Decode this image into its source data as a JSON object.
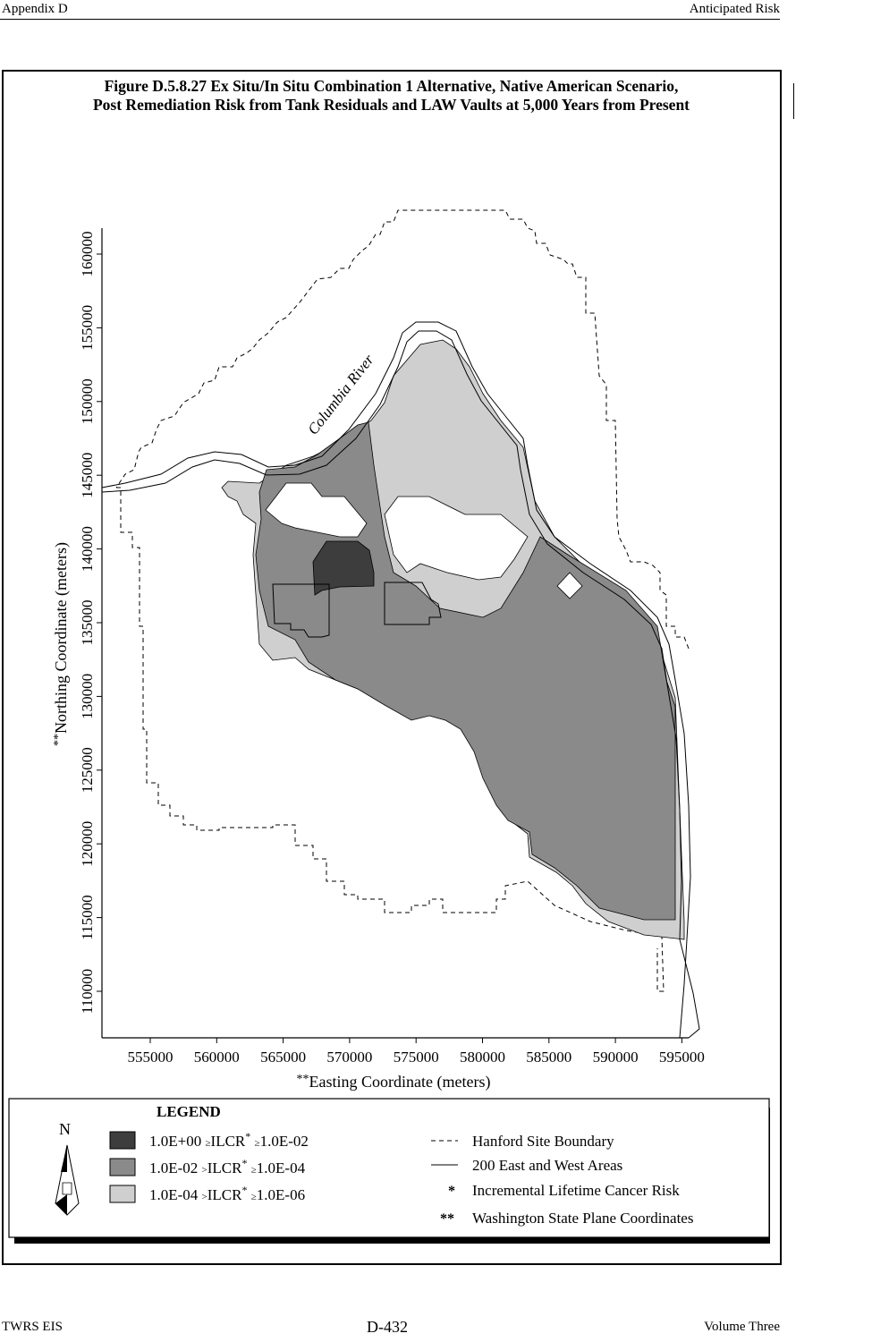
{
  "header": {
    "left": "Appendix D",
    "right": "Anticipated Risk"
  },
  "figure": {
    "title_line1": "Figure D.5.8.27  Ex Situ/In Situ Combination 1 Alternative, Native American Scenario,",
    "title_line2": "Post Remediation Risk from Tank Residuals and LAW Vaults at 5,000 Years from Present"
  },
  "map": {
    "river_label": "Columbia River",
    "x_axis_prefix": "**",
    "x_axis_label": "Easting Coordinate (meters)",
    "y_axis_prefix": "**",
    "y_axis_label": "Northing Coordinate (meters)",
    "x_ticks": [
      "555000",
      "560000",
      "565000",
      "570000",
      "575000",
      "580000",
      "585000",
      "590000",
      "595000"
    ],
    "y_ticks": [
      "110000",
      "115000",
      "120000",
      "125000",
      "130000",
      "135000",
      "140000",
      "145000",
      "150000",
      "155000",
      "160000"
    ],
    "colors": {
      "high": "#3d3d3d",
      "mid": "#8a8a8a",
      "low": "#cfcfcf"
    }
  },
  "legend": {
    "title": "LEGEND",
    "north_symbol": "N",
    "items": [
      {
        "value1": "1.0E+00",
        "op1": "≥",
        "label": "ILCR",
        "star": "*",
        "op2": "≥",
        "value2": "1.0E-02"
      },
      {
        "value1": "1.0E-02",
        "op1": ">",
        "label": "ILCR",
        "star": "*",
        "op2": "≥",
        "value2": "1.0E-04"
      },
      {
        "value1": "1.0E-04",
        "op1": ">",
        "label": "ILCR",
        "star": "*",
        "op2": "≥",
        "value2": "1.0E-06"
      }
    ],
    "keys": [
      {
        "symbol": "",
        "text": "Hanford Site Boundary"
      },
      {
        "symbol": "",
        "text": "200 East and West Areas"
      },
      {
        "symbol": "*",
        "text": "Incremental Lifetime Cancer Risk"
      },
      {
        "symbol": "**",
        "text": "Washington State Plane Coordinates"
      }
    ]
  },
  "footer": {
    "left": "TWRS EIS",
    "center": "D-432",
    "right": "Volume Three"
  }
}
